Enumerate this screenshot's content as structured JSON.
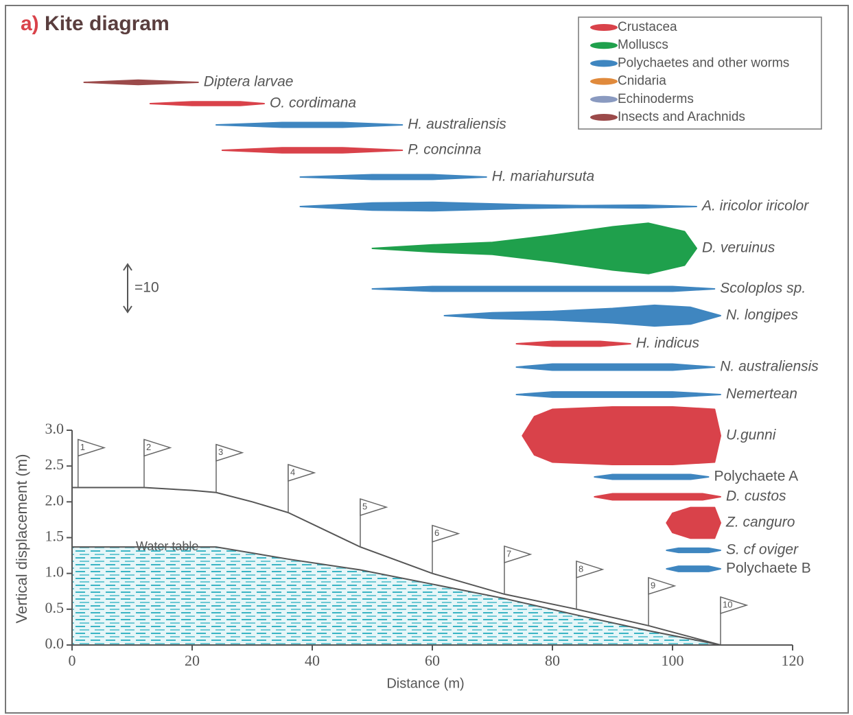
{
  "chart_data": {
    "type": "kite",
    "panel_label": "a)",
    "title": "Kite diagram",
    "legend": [
      {
        "name": "Crustacea",
        "color": "#d9424a"
      },
      {
        "name": "Molluscs",
        "color": "#1fa04c"
      },
      {
        "name": "Polychaetes and other worms",
        "color": "#3f86c0"
      },
      {
        "name": "Cnidaria",
        "color": "#e08a3c"
      },
      {
        "name": "Echinoderms",
        "color": "#8a9ac0"
      },
      {
        "name": "Insects and Arachnids",
        "color": "#9b4a4a"
      }
    ],
    "scale": {
      "value": 10,
      "label": "=10"
    },
    "kites": [
      {
        "name": "Diptera larvae",
        "color": "#9b4a4a",
        "x": [
          2,
          11,
          21
        ],
        "values": [
          0,
          0.9,
          0
        ]
      },
      {
        "name": "O. cordimana",
        "color": "#d9424a",
        "x": [
          13,
          20,
          28,
          32
        ],
        "values": [
          0,
          0.8,
          0.8,
          0
        ]
      },
      {
        "name": "H. australiensis",
        "color": "#3f86c0",
        "x": [
          24,
          35,
          45,
          55
        ],
        "values": [
          0,
          1,
          1,
          0
        ]
      },
      {
        "name": "P. concinna",
        "color": "#d9424a",
        "x": [
          25,
          35,
          45,
          55
        ],
        "values": [
          0,
          1.1,
          1.1,
          0
        ]
      },
      {
        "name": "H. mariahursuta",
        "color": "#3f86c0",
        "x": [
          38,
          50,
          60,
          69
        ],
        "values": [
          0,
          1,
          1,
          0
        ]
      },
      {
        "name": "A. iricolor iricolor",
        "color": "#3f86c0",
        "x": [
          38,
          50,
          60,
          75,
          85,
          95,
          104
        ],
        "values": [
          0,
          1.5,
          1.8,
          0.8,
          0.4,
          0.6,
          0
        ]
      },
      {
        "name": "D. veruinus",
        "color": "#1fa04c",
        "x": [
          50,
          60,
          70,
          80,
          90,
          96,
          102,
          104
        ],
        "values": [
          0,
          1.5,
          2.5,
          5.5,
          9,
          10.5,
          7,
          0
        ]
      },
      {
        "name": "Scoloplos sp.",
        "color": "#3f86c0",
        "x": [
          50,
          60,
          100,
          107
        ],
        "values": [
          0,
          1,
          1,
          0
        ]
      },
      {
        "name": "N. longipes",
        "color": "#3f86c0",
        "x": [
          62,
          70,
          80,
          90,
          97,
          103,
          108
        ],
        "values": [
          0,
          1.2,
          1.8,
          3,
          4.3,
          3.5,
          0
        ]
      },
      {
        "name": "H. indicus",
        "color": "#d9424a",
        "x": [
          74,
          80,
          88,
          93
        ],
        "values": [
          0,
          1,
          1,
          0
        ]
      },
      {
        "name": "N. australiensis",
        "color": "#3f86c0",
        "x": [
          74,
          80,
          100,
          107
        ],
        "values": [
          0,
          1.3,
          1.3,
          0
        ]
      },
      {
        "name": "Nemertean",
        "color": "#3f86c0",
        "x": [
          74,
          80,
          100,
          108
        ],
        "values": [
          0,
          1.1,
          1.1,
          0
        ]
      },
      {
        "name": "U.gunni",
        "color": "#d9424a",
        "x": [
          75,
          77,
          80,
          90,
          100,
          107,
          108
        ],
        "values": [
          0,
          8,
          11,
          12,
          12,
          11,
          0
        ]
      },
      {
        "name": "Polychaete A",
        "color": "#3f86c0",
        "x": [
          87,
          90,
          103,
          106
        ],
        "values": [
          0,
          1,
          1,
          0
        ]
      },
      {
        "name": "D. custos",
        "color": "#d9424a",
        "x": [
          87,
          90,
          105,
          108
        ],
        "values": [
          0,
          1.3,
          1.3,
          0
        ]
      },
      {
        "name": "Z. canguro",
        "color": "#d9424a",
        "x": [
          99,
          100,
          103,
          107,
          108
        ],
        "values": [
          0,
          4,
          6.4,
          6.4,
          0
        ]
      },
      {
        "name": "S. cf oviger",
        "color": "#3f86c0",
        "x": [
          99,
          101,
          106,
          108
        ],
        "values": [
          0,
          0.9,
          0.9,
          0
        ]
      },
      {
        "name": "Polychaete B",
        "color": "#3f86c0",
        "x": [
          99,
          101,
          106,
          108
        ],
        "values": [
          0,
          1.1,
          1.1,
          0
        ]
      }
    ],
    "profile": {
      "surface": {
        "x": [
          0,
          12,
          20,
          24,
          30,
          36,
          48,
          60,
          72,
          84,
          96,
          108
        ],
        "y": [
          2.2,
          2.2,
          2.16,
          2.13,
          2.0,
          1.85,
          1.37,
          1.0,
          0.71,
          0.5,
          0.27,
          0
        ]
      },
      "water_table": {
        "label": "Water table",
        "x": [
          0,
          24,
          36,
          48,
          60,
          72,
          84,
          96,
          108
        ],
        "y": [
          1.37,
          1.37,
          1.2,
          1.05,
          0.85,
          0.65,
          0.42,
          0.2,
          0
        ]
      },
      "stations": {
        "labels": [
          "1",
          "2",
          "3",
          "4",
          "5",
          "6",
          "7",
          "8",
          "9",
          "10"
        ],
        "x": [
          1,
          12,
          24,
          36,
          48,
          60,
          72,
          84,
          96,
          108
        ]
      }
    },
    "xlabel": "Distance (m)",
    "ylabel": "Vertical displacement (m)",
    "xlim": [
      0,
      120
    ],
    "xticks": [
      0,
      20,
      40,
      60,
      80,
      100,
      120
    ],
    "ylim": [
      0,
      3
    ],
    "yticks": [
      {
        "value": 0,
        "label": "0.0"
      },
      0.5,
      {
        "value": 1,
        "label": "1.0"
      },
      1.5,
      {
        "value": 2,
        "label": "2.0"
      },
      2.5,
      {
        "value": 3,
        "label": "3.0"
      }
    ]
  }
}
